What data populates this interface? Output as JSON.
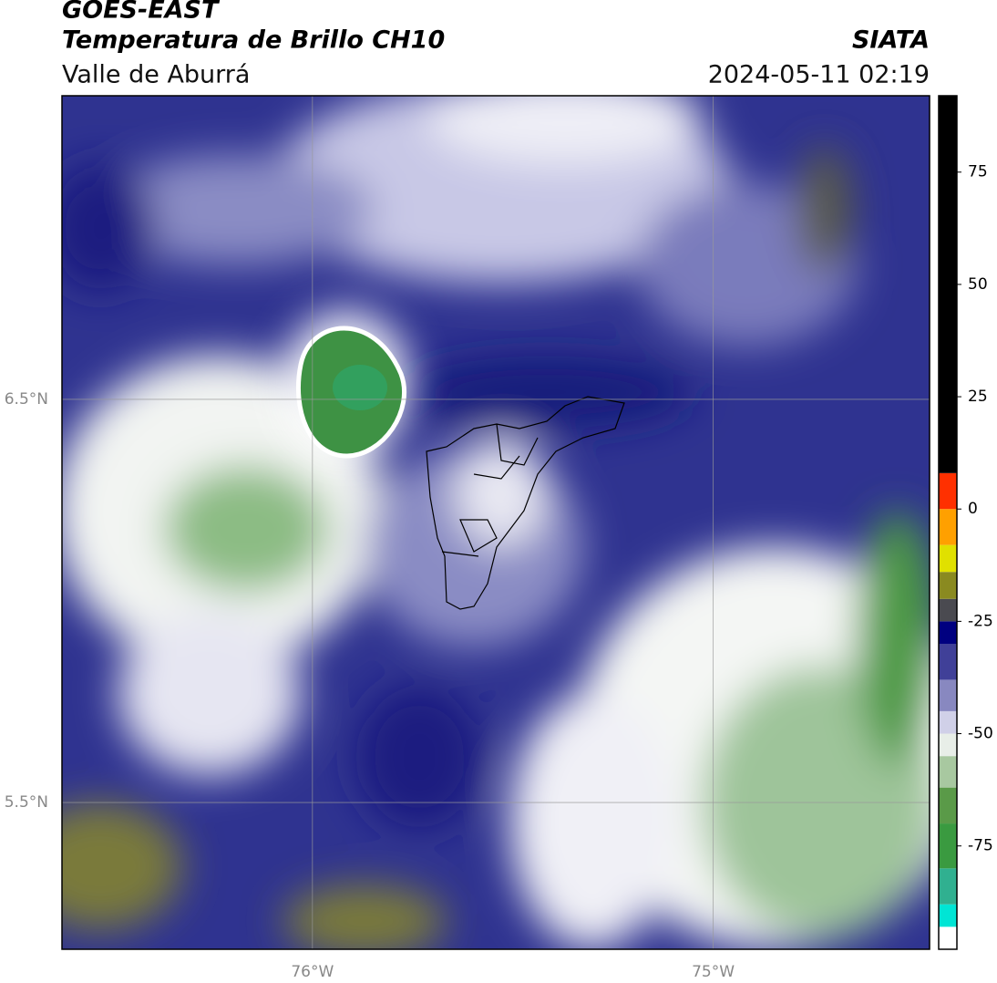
{
  "header": {
    "title": "GOES-EAST",
    "subtitle": "Temperatura de Brillo CH10",
    "region": "Valle de Aburrá",
    "source": "SIATA",
    "datetime": "2024-05-11 02:19"
  },
  "map": {
    "xlim": [
      -76.625,
      -74.46
    ],
    "ylim": [
      5.136,
      7.253
    ],
    "xticks": [
      {
        "value": -76,
        "label": "76°W"
      },
      {
        "value": -75,
        "label": "75°W"
      }
    ],
    "yticks": [
      {
        "value": 6.5,
        "label": "6.5°N"
      },
      {
        "value": 5.5,
        "label": "5.5°N"
      }
    ],
    "grid": true
  },
  "colorbar": {
    "lim": [
      -98,
      92
    ],
    "ticks": [
      75,
      50,
      25,
      0,
      -25,
      -50,
      -75
    ],
    "bands": [
      {
        "from": -98,
        "to": -93,
        "color": "#ffffff"
      },
      {
        "from": -93,
        "to": -88,
        "color": "#00e5d5"
      },
      {
        "from": -88,
        "to": -80,
        "color": "#30b090"
      },
      {
        "from": -80,
        "to": -70,
        "color": "#3a9a40"
      },
      {
        "from": -70,
        "to": -62,
        "color": "#5a9a48"
      },
      {
        "from": -62,
        "to": -55,
        "color": "#a8c8a0"
      },
      {
        "from": -55,
        "to": -50,
        "color": "#e8eee8"
      },
      {
        "from": -50,
        "to": -45,
        "color": "#d0d0e8"
      },
      {
        "from": -45,
        "to": -38,
        "color": "#8888c0"
      },
      {
        "from": -38,
        "to": -30,
        "color": "#404098"
      },
      {
        "from": -30,
        "to": -25,
        "color": "#000080"
      },
      {
        "from": -25,
        "to": -20,
        "color": "#4a4a50"
      },
      {
        "from": -20,
        "to": -14,
        "color": "#8a8a20"
      },
      {
        "from": -14,
        "to": -8,
        "color": "#e0e000"
      },
      {
        "from": -8,
        "to": 0,
        "color": "#ffa000"
      },
      {
        "from": 0,
        "to": 8,
        "color": "#ff3000"
      },
      {
        "from": 8,
        "to": 92,
        "color": "#000000"
      }
    ]
  }
}
